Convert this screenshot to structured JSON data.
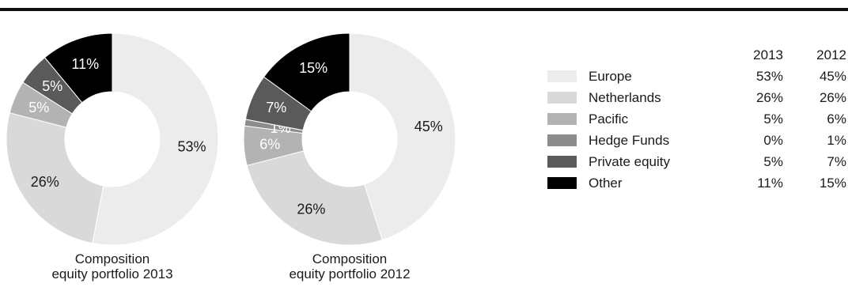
{
  "chart_data": [
    {
      "type": "pie",
      "variant": "donut",
      "title": "Composition equity portfolio 2013",
      "title_lines": [
        "Composition",
        "equity portfolio 2013"
      ],
      "categories": [
        "Europe",
        "Netherlands",
        "Pacific",
        "Hedge Funds",
        "Private equity",
        "Other"
      ],
      "values": [
        53,
        26,
        5,
        0,
        5,
        11
      ],
      "labels": [
        "53%",
        "26%",
        "5%",
        "",
        "5%",
        "11%"
      ]
    },
    {
      "type": "pie",
      "variant": "donut",
      "title": "Composition equity portfolio 2012",
      "title_lines": [
        "Composition",
        "equity portfolio 2012"
      ],
      "categories": [
        "Europe",
        "Netherlands",
        "Pacific",
        "Hedge Funds",
        "Private equity",
        "Other"
      ],
      "values": [
        45,
        26,
        6,
        1,
        7,
        15
      ],
      "labels": [
        "45%",
        "26%",
        "6%",
        "1%",
        "7%",
        "15%"
      ]
    }
  ],
  "legend": {
    "columns": [
      "2013",
      "2012"
    ],
    "rows": [
      {
        "name": "Europe",
        "v2013": "53%",
        "v2012": "45%",
        "color": "#ececec"
      },
      {
        "name": "Netherlands",
        "v2013": "26%",
        "v2012": "26%",
        "color": "#d9d9d9"
      },
      {
        "name": "Pacific",
        "v2013": "5%",
        "v2012": "6%",
        "color": "#b3b3b3"
      },
      {
        "name": "Hedge Funds",
        "v2013": "0%",
        "v2012": "1%",
        "color": "#8c8c8c"
      },
      {
        "name": "Private equity",
        "v2013": "5%",
        "v2012": "7%",
        "color": "#5a5a5a"
      },
      {
        "name": "Other",
        "v2013": "11%",
        "v2012": "15%",
        "color": "#000000"
      }
    ]
  },
  "label_colors": {
    "Europe": "#1a1a1a",
    "Netherlands": "#1a1a1a",
    "Pacific": "#ffffff",
    "Hedge Funds": "#ffffff",
    "Private equity": "#ffffff",
    "Other": "#ffffff"
  }
}
